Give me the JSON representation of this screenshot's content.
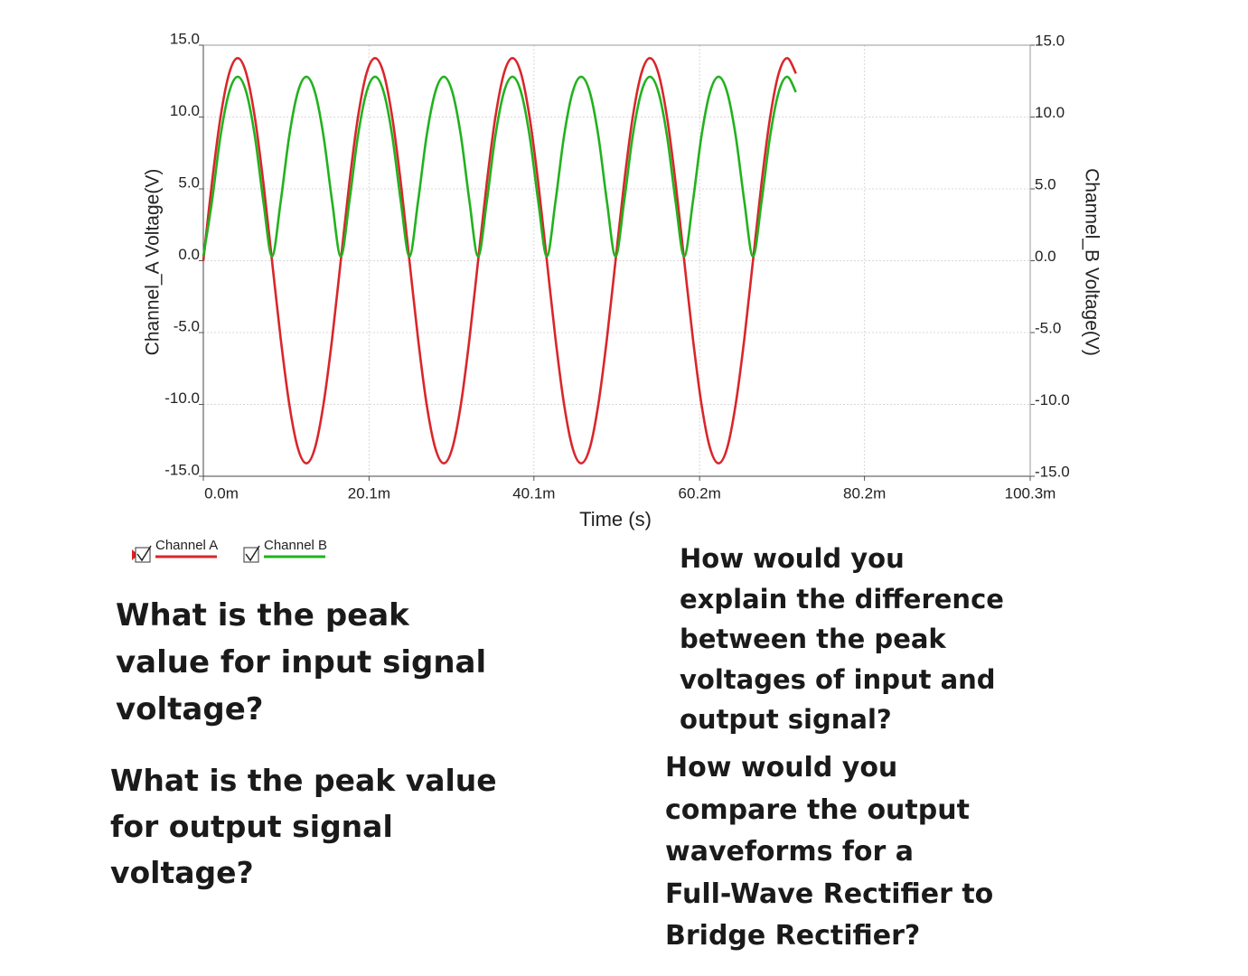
{
  "chart_data": {
    "type": "line",
    "xlabel": "Time (s)",
    "ylabel": "Channel_A Voltage(V)",
    "y2label": "Channel_B Voltage(V)",
    "x": [
      0,
      0.00104,
      0.00208,
      0.00313,
      0.00417,
      0.00521,
      0.00625,
      0.00729,
      0.00833,
      0.00938,
      0.01042,
      0.01146,
      0.0125,
      0.01354,
      0.01458,
      0.01563,
      0.01667,
      0.01771,
      0.01875,
      0.01979,
      0.02083,
      0.02188,
      0.02292,
      0.02396,
      0.025,
      0.02604,
      0.02708,
      0.02813,
      0.02917,
      0.03021,
      0.03125,
      0.03229,
      0.03333,
      0.03438,
      0.03542,
      0.03646,
      0.0375,
      0.03854,
      0.03958,
      0.04063,
      0.04167,
      0.04271,
      0.04375,
      0.04479,
      0.04583,
      0.04688,
      0.04792,
      0.04896,
      0.05,
      0.05104,
      0.05208,
      0.05313,
      0.05417,
      0.05521,
      0.05625,
      0.05729,
      0.05833,
      0.05938,
      0.06042,
      0.06146,
      0.0625,
      0.06354,
      0.06458,
      0.06563,
      0.06667,
      0.06771,
      0.06875,
      0.06979,
      0.07083,
      0.07188
    ],
    "series": [
      {
        "name": "Channel A",
        "color": "#d9262b",
        "values": [
          0,
          5.4,
          9.97,
          13.03,
          14.1,
          13.03,
          9.97,
          5.4,
          0,
          -5.4,
          -9.97,
          -13.03,
          -14.1,
          -13.03,
          -9.97,
          -5.4,
          0,
          5.4,
          9.97,
          13.03,
          14.1,
          13.03,
          9.97,
          5.4,
          0,
          -5.4,
          -9.97,
          -13.03,
          -14.1,
          -13.03,
          -9.97,
          -5.4,
          0,
          5.4,
          9.97,
          13.03,
          14.1,
          13.03,
          9.97,
          5.4,
          0,
          -5.4,
          -9.97,
          -13.03,
          -14.1,
          -13.03,
          -9.97,
          -5.4,
          0,
          5.4,
          9.97,
          13.03,
          14.1,
          13.03,
          9.97,
          5.4,
          0,
          -5.4,
          -9.97,
          -13.03,
          -14.1,
          -13.03,
          -9.97,
          -5.4,
          0,
          5.4,
          9.97,
          13.03,
          14.1,
          13.03
        ]
      },
      {
        "name": "Channel B",
        "color": "#22b21e",
        "axis": "y2",
        "values": [
          0.3,
          4.1,
          8.67,
          11.73,
          12.8,
          11.73,
          8.67,
          4.1,
          0.3,
          4.1,
          8.67,
          11.73,
          12.8,
          11.73,
          8.67,
          4.1,
          0.3,
          4.1,
          8.67,
          11.73,
          12.8,
          11.73,
          8.67,
          4.1,
          0.3,
          4.1,
          8.67,
          11.73,
          12.8,
          11.73,
          8.67,
          4.1,
          0.3,
          4.1,
          8.67,
          11.73,
          12.8,
          11.73,
          8.67,
          4.1,
          0.3,
          4.1,
          8.67,
          11.73,
          12.8,
          11.73,
          8.67,
          4.1,
          0.3,
          4.1,
          8.67,
          11.73,
          12.8,
          11.73,
          8.67,
          4.1,
          0.3,
          4.1,
          8.67,
          11.73,
          12.8,
          11.73,
          8.67,
          4.1,
          0.3,
          4.1,
          8.67,
          11.73,
          12.8,
          11.73
        ]
      }
    ],
    "xlim": [
      0,
      0.1003
    ],
    "xticks": [
      {
        "value": 0,
        "label": "0.0m"
      },
      {
        "value": 0.0201,
        "label": "20.1m"
      },
      {
        "value": 0.0401,
        "label": "40.1m"
      },
      {
        "value": 0.0602,
        "label": "60.2m"
      },
      {
        "value": 0.0802,
        "label": "80.2m"
      },
      {
        "value": 0.1003,
        "label": "100.3m"
      }
    ],
    "ylim": [
      -15,
      15
    ],
    "yticks": [
      {
        "value": -15,
        "label": "-15.0"
      },
      {
        "value": -10,
        "label": "-10.0"
      },
      {
        "value": -5,
        "label": "-5.0"
      },
      {
        "value": 0,
        "label": "0.0"
      },
      {
        "value": 5,
        "label": "5.0"
      },
      {
        "value": 10,
        "label": "10.0"
      },
      {
        "value": 15,
        "label": "15.0"
      }
    ],
    "y2lim": [
      -15,
      15
    ],
    "y2ticks": [
      {
        "value": -15,
        "label": "-15.0"
      },
      {
        "value": -10,
        "label": "-10.0"
      },
      {
        "value": -5,
        "label": "-5.0"
      },
      {
        "value": 0,
        "label": "0.0"
      },
      {
        "value": 5,
        "label": "5.0"
      },
      {
        "value": 10,
        "label": "10.0"
      },
      {
        "value": 15,
        "label": "15.0"
      }
    ],
    "grid": true
  },
  "questions": [
    {
      "lines": [
        "What is the peak",
        "value for input signal",
        "voltage?"
      ]
    },
    {
      "lines": [
        "What is the peak value",
        "for output signal",
        "voltage?"
      ]
    },
    {
      "lines": [
        "How would you",
        "explain the difference",
        "between the peak",
        "voltages of input and",
        "output signal?"
      ]
    },
    {
      "lines": [
        "How would you",
        "compare the output",
        "waveforms for a",
        "Full-Wave Rectifier to",
        "Bridge Rectifier?"
      ]
    }
  ]
}
